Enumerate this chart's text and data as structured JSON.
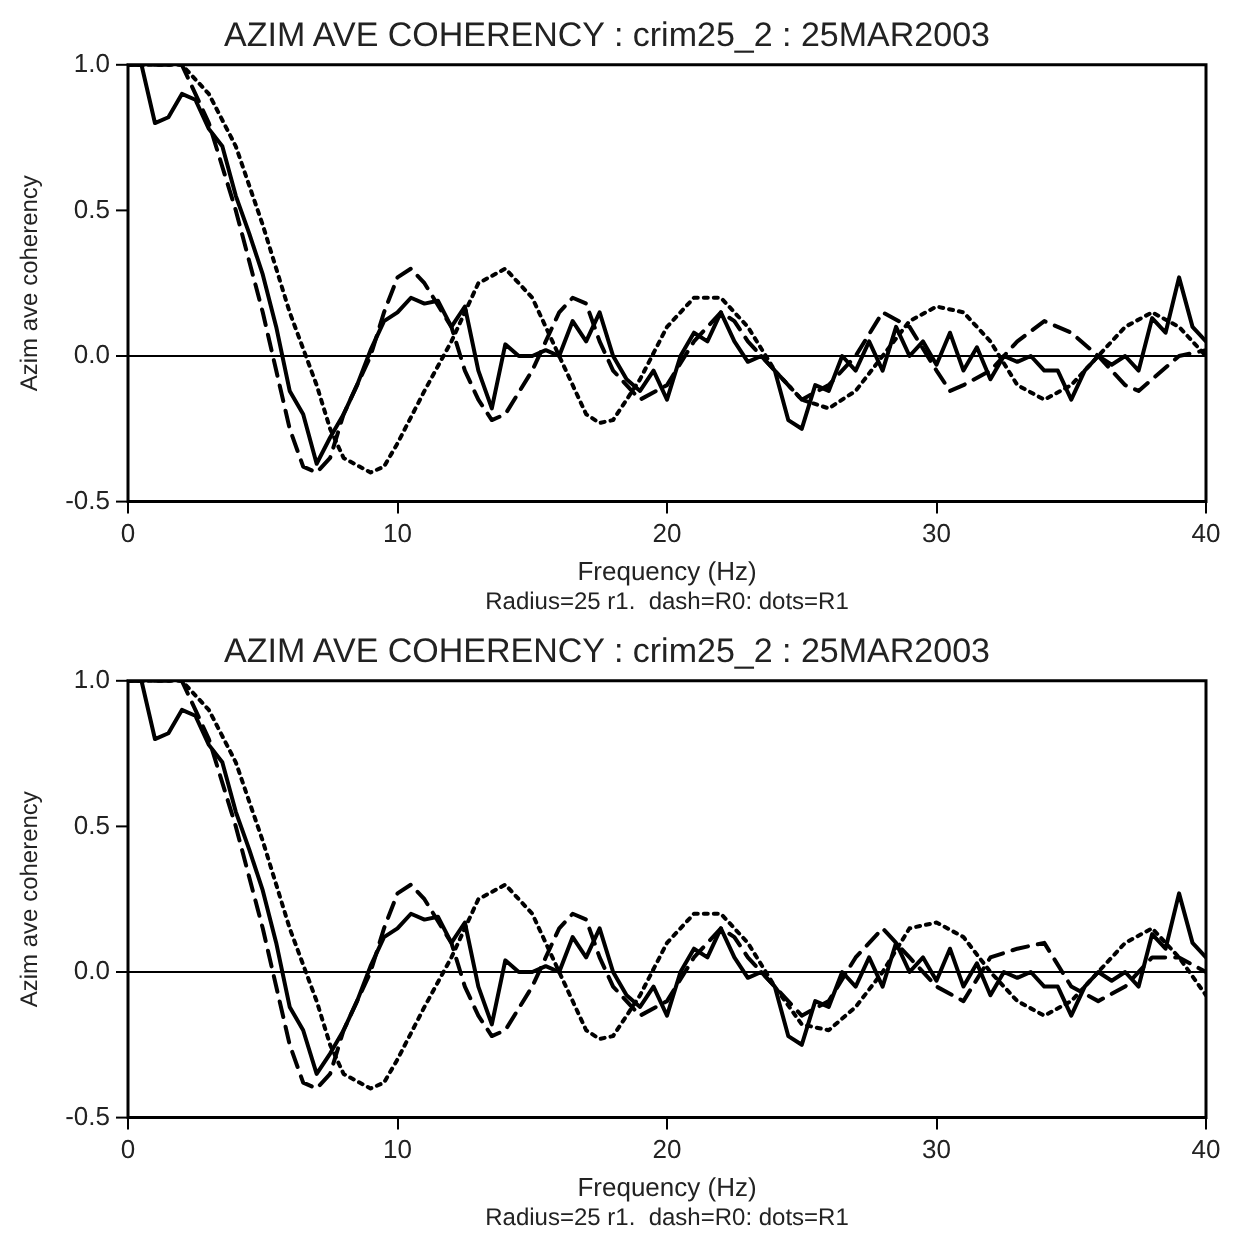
{
  "chart_data": [
    {
      "type": "line",
      "title": "AZIM AVE COHERENCY : crim25_2 : 25MAR2003",
      "xlabel": "Frequency (Hz)",
      "ylabel": "Azim ave coherency",
      "annotations": [
        "Radius=25 r1.  dash=R0: dots=R1"
      ],
      "xlim": [
        0,
        40
      ],
      "xticks": [
        0,
        10,
        20,
        30,
        40
      ],
      "ylim": [
        -0.5,
        1.0
      ],
      "yticks": [
        {
          "value": -0.5,
          "label": "-0.5"
        },
        {
          "value": 0,
          "label": "0.0"
        },
        {
          "value": 0.5,
          "label": "0.5"
        },
        {
          "value": 1,
          "label": "1.0"
        }
      ],
      "grid": false,
      "legend": false,
      "marker": "none",
      "ref_lines": [
        {
          "axis": "y",
          "value": 0,
          "color": "#000000"
        }
      ],
      "series": [
        {
          "color": "#000000",
          "line_style": "solid",
          "x": [
            0,
            0.5,
            1,
            1.5,
            2,
            2.5,
            3,
            3.5,
            4,
            4.5,
            5,
            5.5,
            6,
            6.5,
            7,
            7.5,
            8,
            8.5,
            9,
            9.5,
            10,
            10.5,
            11,
            11.5,
            12,
            12.5,
            13,
            13.5,
            14,
            14.5,
            15,
            15.5,
            16,
            16.5,
            17,
            17.5,
            18,
            18.5,
            19,
            19.5,
            20,
            20.5,
            21,
            21.5,
            22,
            22.5,
            23,
            23.5,
            24,
            24.5,
            25,
            25.5,
            26,
            26.5,
            27,
            27.5,
            28,
            28.5,
            29,
            29.5,
            30,
            30.5,
            31,
            31.5,
            32,
            32.5,
            33,
            33.5,
            34,
            34.5,
            35,
            35.5,
            36,
            36.5,
            37,
            37.5,
            38,
            38.5,
            39,
            39.5,
            40
          ],
          "values": [
            1.0,
            1.0,
            0.8,
            0.82,
            0.9,
            0.88,
            0.78,
            0.72,
            0.55,
            0.42,
            0.28,
            0.1,
            -0.12,
            -0.2,
            -0.37,
            -0.28,
            -0.2,
            -0.1,
            0.02,
            0.12,
            0.15,
            0.2,
            0.18,
            0.19,
            0.1,
            0.17,
            -0.05,
            -0.18,
            0.04,
            0.0,
            0.0,
            0.02,
            0.0,
            0.12,
            0.05,
            0.15,
            0.0,
            -0.08,
            -0.12,
            -0.05,
            -0.15,
            0.0,
            0.08,
            0.05,
            0.15,
            0.05,
            -0.02,
            0.0,
            -0.05,
            -0.22,
            -0.25,
            -0.1,
            -0.12,
            0.0,
            -0.05,
            0.05,
            -0.05,
            0.1,
            0.0,
            0.05,
            -0.03,
            0.08,
            -0.05,
            0.03,
            -0.08,
            0.0,
            -0.02,
            0.0,
            -0.05,
            -0.05,
            -0.15,
            -0.05,
            0.0,
            -0.03,
            0.0,
            -0.05,
            0.13,
            0.08,
            0.27,
            0.1,
            0.05
          ]
        },
        {
          "color": "#000000",
          "line_style": "dashed",
          "x": [
            0,
            1,
            2,
            3,
            4,
            5,
            5.5,
            6,
            6.5,
            7,
            7.5,
            8,
            9,
            9.5,
            10,
            10.5,
            11,
            12,
            12.5,
            13,
            13.5,
            14,
            15,
            15.5,
            16,
            16.5,
            17,
            17.5,
            18,
            19,
            20,
            21,
            22,
            22.5,
            23,
            24,
            25,
            26,
            27,
            28,
            29,
            30,
            30.5,
            31,
            32,
            33,
            34,
            35,
            36,
            37,
            37.5,
            38,
            39,
            40
          ],
          "values": [
            1.0,
            1.0,
            1.0,
            0.8,
            0.5,
            0.15,
            -0.05,
            -0.25,
            -0.38,
            -0.4,
            -0.35,
            -0.2,
            0.0,
            0.15,
            0.27,
            0.3,
            0.25,
            0.1,
            -0.05,
            -0.15,
            -0.22,
            -0.2,
            -0.05,
            0.05,
            0.15,
            0.2,
            0.18,
            0.05,
            -0.05,
            -0.15,
            -0.1,
            0.05,
            0.15,
            0.12,
            0.05,
            -0.05,
            -0.15,
            -0.1,
            0.0,
            0.15,
            0.1,
            -0.05,
            -0.12,
            -0.1,
            -0.05,
            0.05,
            0.12,
            0.08,
            0.0,
            -0.1,
            -0.12,
            -0.08,
            0.0,
            0.02
          ]
        },
        {
          "color": "#000000",
          "line_style": "dotted",
          "x": [
            0,
            2,
            3,
            4,
            5,
            6,
            7,
            7.5,
            8,
            9,
            9.5,
            10,
            11,
            12,
            13,
            14,
            15,
            16,
            17,
            17.5,
            18,
            19,
            20,
            21,
            22,
            23,
            24,
            25,
            26,
            27,
            28,
            29,
            30,
            31,
            32,
            33,
            34,
            35,
            36,
            37,
            38,
            39,
            40
          ],
          "values": [
            1.0,
            1.0,
            0.9,
            0.72,
            0.45,
            0.15,
            -0.1,
            -0.25,
            -0.35,
            -0.4,
            -0.38,
            -0.3,
            -0.12,
            0.05,
            0.25,
            0.3,
            0.2,
            0.0,
            -0.2,
            -0.23,
            -0.22,
            -0.08,
            0.1,
            0.2,
            0.2,
            0.1,
            -0.05,
            -0.15,
            -0.18,
            -0.12,
            0.0,
            0.12,
            0.17,
            0.15,
            0.05,
            -0.1,
            -0.15,
            -0.1,
            0.0,
            0.1,
            0.15,
            0.1,
            0.0
          ]
        }
      ]
    },
    {
      "type": "line",
      "title": "AZIM AVE COHERENCY : crim25_2 : 25MAR2003",
      "xlabel": "Frequency (Hz)",
      "ylabel": "Azim ave coherency",
      "annotations": [
        "Radius=25 r1.  dash=R0: dots=R1"
      ],
      "xlim": [
        0,
        40
      ],
      "xticks": [
        0,
        10,
        20,
        30,
        40
      ],
      "ylim": [
        -0.5,
        1.0
      ],
      "yticks": [
        {
          "value": -0.5,
          "label": "-0.5"
        },
        {
          "value": 0,
          "label": "0.0"
        },
        {
          "value": 0.5,
          "label": "0.5"
        },
        {
          "value": 1,
          "label": "1.0"
        }
      ],
      "grid": false,
      "legend": false,
      "marker": "none",
      "ref_lines": [
        {
          "axis": "y",
          "value": 0,
          "color": "#000000"
        }
      ],
      "series": [
        {
          "color": "#000000",
          "line_style": "solid",
          "x": [
            0,
            0.5,
            1,
            1.5,
            2,
            2.5,
            3,
            3.5,
            4,
            4.5,
            5,
            5.5,
            6,
            6.5,
            7,
            7.5,
            8,
            8.5,
            9,
            9.5,
            10,
            10.5,
            11,
            11.5,
            12,
            12.5,
            13,
            13.5,
            14,
            14.5,
            15,
            15.5,
            16,
            16.5,
            17,
            17.5,
            18,
            18.5,
            19,
            19.5,
            20,
            20.5,
            21,
            21.5,
            22,
            22.5,
            23,
            23.5,
            24,
            24.5,
            25,
            25.5,
            26,
            26.5,
            27,
            27.5,
            28,
            28.5,
            29,
            29.5,
            30,
            30.5,
            31,
            31.5,
            32,
            32.5,
            33,
            33.5,
            34,
            34.5,
            35,
            35.5,
            36,
            36.5,
            37,
            37.5,
            38,
            38.5,
            39,
            39.5,
            40
          ],
          "values": [
            1.0,
            1.0,
            0.8,
            0.82,
            0.9,
            0.88,
            0.78,
            0.72,
            0.55,
            0.42,
            0.28,
            0.1,
            -0.12,
            -0.2,
            -0.35,
            -0.28,
            -0.2,
            -0.1,
            0.02,
            0.12,
            0.15,
            0.2,
            0.18,
            0.19,
            0.1,
            0.17,
            -0.05,
            -0.18,
            0.04,
            0.0,
            0.0,
            0.02,
            0.0,
            0.12,
            0.05,
            0.15,
            0.0,
            -0.08,
            -0.12,
            -0.05,
            -0.15,
            0.0,
            0.08,
            0.05,
            0.15,
            0.05,
            -0.02,
            0.0,
            -0.05,
            -0.22,
            -0.25,
            -0.1,
            -0.12,
            0.0,
            -0.05,
            0.05,
            -0.05,
            0.1,
            0.0,
            0.05,
            -0.03,
            0.08,
            -0.05,
            0.03,
            -0.08,
            0.0,
            -0.02,
            0.0,
            -0.05,
            -0.05,
            -0.15,
            -0.05,
            0.0,
            -0.03,
            0.0,
            -0.05,
            0.13,
            0.08,
            0.27,
            0.1,
            0.05
          ]
        },
        {
          "color": "#000000",
          "line_style": "dashed",
          "x": [
            0,
            1,
            2,
            3,
            4,
            5,
            5.5,
            6,
            6.5,
            7,
            7.5,
            8,
            9,
            9.5,
            10,
            10.5,
            11,
            12,
            12.5,
            13,
            13.5,
            14,
            15,
            15.5,
            16,
            16.5,
            17,
            17.5,
            18,
            19,
            20,
            21,
            22,
            22.5,
            23,
            24,
            25,
            26,
            27,
            28,
            29,
            30,
            31,
            32,
            33,
            34,
            35,
            36,
            37,
            38,
            39,
            40
          ],
          "values": [
            1.0,
            1.0,
            1.0,
            0.8,
            0.5,
            0.15,
            -0.05,
            -0.25,
            -0.38,
            -0.4,
            -0.35,
            -0.2,
            0.0,
            0.15,
            0.27,
            0.3,
            0.25,
            0.1,
            -0.05,
            -0.15,
            -0.22,
            -0.2,
            -0.05,
            0.05,
            0.15,
            0.2,
            0.18,
            0.05,
            -0.05,
            -0.15,
            -0.1,
            0.05,
            0.15,
            0.12,
            0.05,
            -0.05,
            -0.15,
            -0.1,
            0.05,
            0.15,
            0.05,
            -0.05,
            -0.1,
            0.05,
            0.08,
            0.1,
            -0.05,
            -0.1,
            -0.05,
            0.05,
            0.05,
            0.0
          ]
        },
        {
          "color": "#000000",
          "line_style": "dotted",
          "x": [
            0,
            2,
            3,
            4,
            5,
            6,
            7,
            7.5,
            8,
            9,
            9.5,
            10,
            11,
            12,
            13,
            14,
            15,
            16,
            17,
            17.5,
            18,
            19,
            20,
            21,
            22,
            23,
            24,
            25,
            26,
            27,
            28,
            29,
            30,
            31,
            32,
            33,
            34,
            35,
            36,
            37,
            38,
            39,
            40
          ],
          "values": [
            1.0,
            1.0,
            0.9,
            0.72,
            0.45,
            0.15,
            -0.1,
            -0.25,
            -0.35,
            -0.4,
            -0.38,
            -0.3,
            -0.12,
            0.05,
            0.25,
            0.3,
            0.2,
            0.0,
            -0.2,
            -0.23,
            -0.22,
            -0.08,
            0.1,
            0.2,
            0.2,
            0.1,
            -0.05,
            -0.18,
            -0.2,
            -0.12,
            0.0,
            0.15,
            0.17,
            0.12,
            0.0,
            -0.1,
            -0.15,
            -0.1,
            0.0,
            0.1,
            0.15,
            0.05,
            -0.08
          ]
        }
      ]
    }
  ]
}
